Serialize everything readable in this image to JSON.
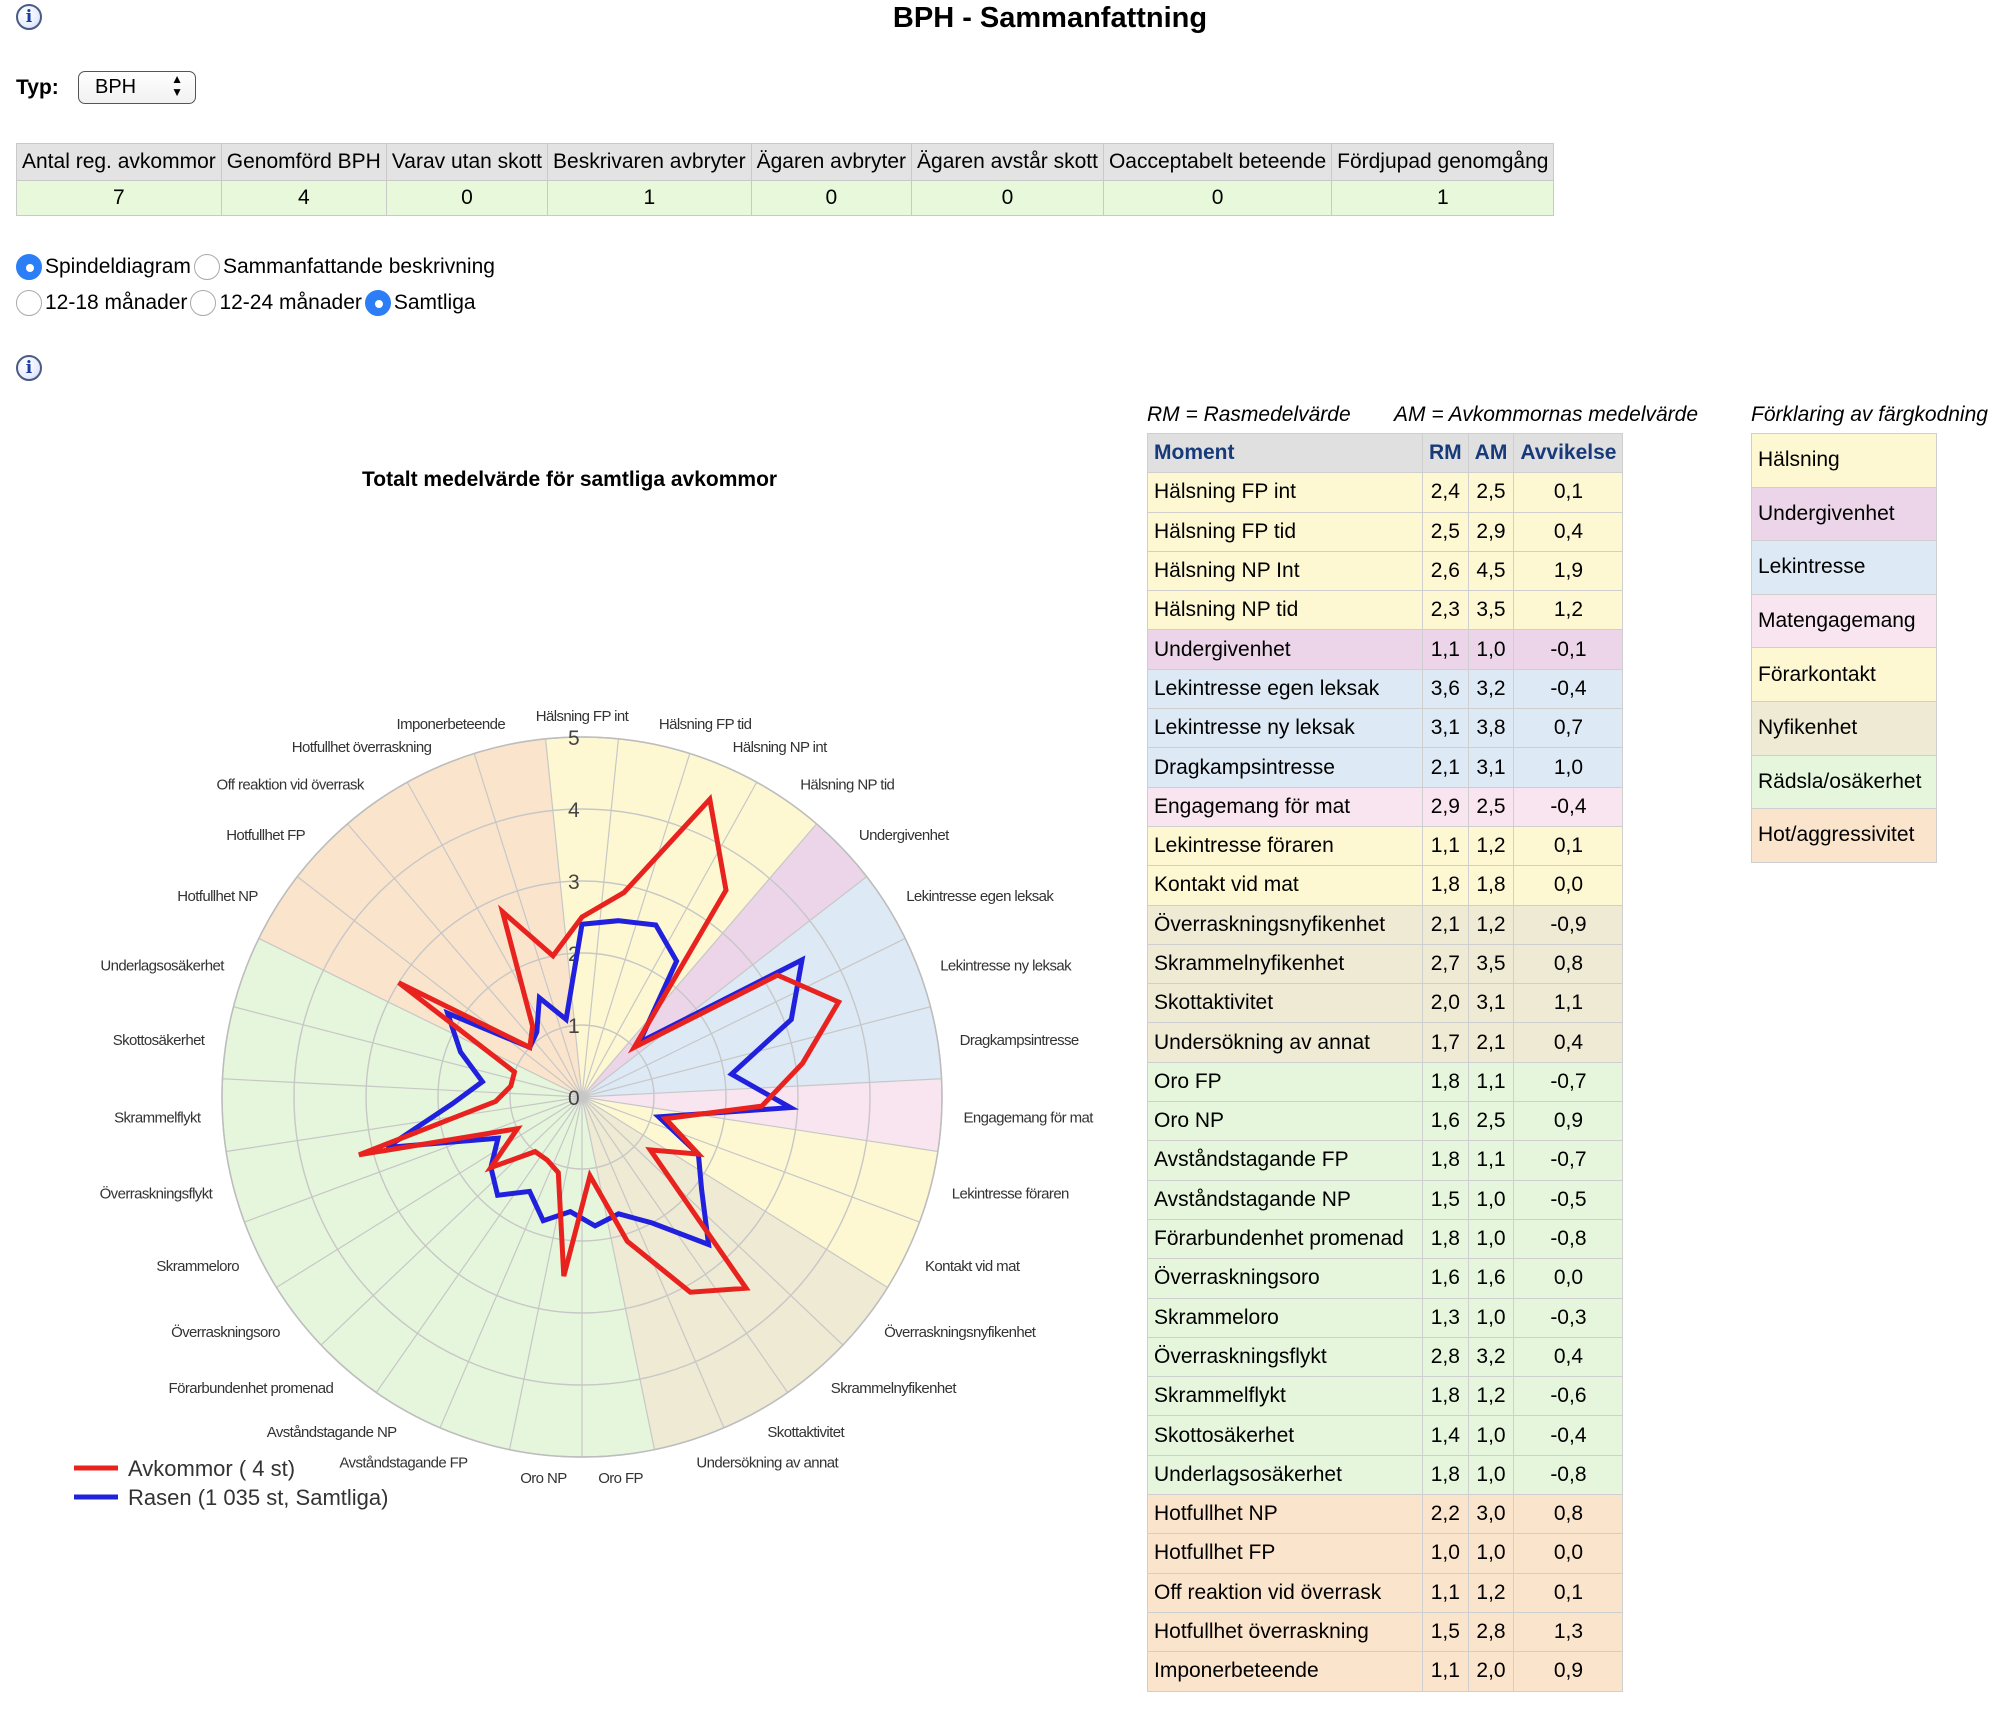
{
  "page": {
    "title": "BPH - Sammanfattning"
  },
  "info_icon_glyph": "i",
  "typ": {
    "label": "Typ:",
    "selected": "BPH"
  },
  "stats": {
    "headers": [
      "Antal reg. avkommor",
      "Genomförd BPH",
      "Varav utan skott",
      "Beskrivaren avbryter",
      "Ägaren avbryter",
      "Ägaren avstår skott",
      "Oacceptabelt beteende",
      "Fördjupad genomgång"
    ],
    "values": [
      "7",
      "4",
      "0",
      "1",
      "0",
      "0",
      "0",
      "1"
    ]
  },
  "view_options": [
    {
      "label": "Spindeldiagram",
      "checked": true
    },
    {
      "label": "Sammanfattande beskrivning",
      "checked": false
    }
  ],
  "age_options": [
    {
      "label": "12-18 månader",
      "checked": false
    },
    {
      "label": "12-24 månader",
      "checked": false
    },
    {
      "label": "Samtliga",
      "checked": true
    }
  ],
  "legend_notes": {
    "rm": "RM = Rasmedelvärde",
    "am": "AM = Avkommornas medelvärde",
    "colors": "Förklaring av färgkodning"
  },
  "table_headers": {
    "moment": "Moment",
    "rm": "RM",
    "am": "AM",
    "deviation": "Avvikelse"
  },
  "category_colors": {
    "halsning": "#fdf8d2",
    "undergivenhet": "#ecd5e8",
    "lekintresse": "#dde9f4",
    "matengagemang": "#f9e5ef",
    "forarkontakt": "#fdf8d2",
    "nyfikenhet": "#efead3",
    "radsla": "#e6f6dc",
    "hot": "#fbe4cc"
  },
  "moments": [
    {
      "name": "Hälsning FP int",
      "rm": "2,4",
      "am": "2,5",
      "dev": "0,1",
      "cat": "halsning"
    },
    {
      "name": "Hälsning FP tid",
      "rm": "2,5",
      "am": "2,9",
      "dev": "0,4",
      "cat": "halsning"
    },
    {
      "name": "Hälsning NP Int",
      "rm": "2,6",
      "am": "4,5",
      "dev": "1,9",
      "cat": "halsning"
    },
    {
      "name": "Hälsning NP tid",
      "rm": "2,3",
      "am": "3,5",
      "dev": "1,2",
      "cat": "halsning"
    },
    {
      "name": "Undergivenhet",
      "rm": "1,1",
      "am": "1,0",
      "dev": "-0,1",
      "cat": "undergivenhet"
    },
    {
      "name": "Lekintresse egen leksak",
      "rm": "3,6",
      "am": "3,2",
      "dev": "-0,4",
      "cat": "lekintresse"
    },
    {
      "name": "Lekintresse ny leksak",
      "rm": "3,1",
      "am": "3,8",
      "dev": "0,7",
      "cat": "lekintresse"
    },
    {
      "name": "Dragkampsintresse",
      "rm": "2,1",
      "am": "3,1",
      "dev": "1,0",
      "cat": "lekintresse"
    },
    {
      "name": "Engagemang för mat",
      "rm": "2,9",
      "am": "2,5",
      "dev": "-0,4",
      "cat": "matengagemang"
    },
    {
      "name": "Lekintresse föraren",
      "rm": "1,1",
      "am": "1,2",
      "dev": "0,1",
      "cat": "forarkontakt"
    },
    {
      "name": "Kontakt vid mat",
      "rm": "1,8",
      "am": "1,8",
      "dev": "0,0",
      "cat": "forarkontakt"
    },
    {
      "name": "Överraskningsnyfikenhet",
      "rm": "2,1",
      "am": "1,2",
      "dev": "-0,9",
      "cat": "nyfikenhet"
    },
    {
      "name": "Skrammelnyfikenhet",
      "rm": "2,7",
      "am": "3,5",
      "dev": "0,8",
      "cat": "nyfikenhet"
    },
    {
      "name": "Skottaktivitet",
      "rm": "2,0",
      "am": "3,1",
      "dev": "1,1",
      "cat": "nyfikenhet"
    },
    {
      "name": "Undersökning av annat",
      "rm": "1,7",
      "am": "2,1",
      "dev": "0,4",
      "cat": "nyfikenhet"
    },
    {
      "name": "Oro FP",
      "rm": "1,8",
      "am": "1,1",
      "dev": "-0,7",
      "cat": "radsla"
    },
    {
      "name": "Oro NP",
      "rm": "1,6",
      "am": "2,5",
      "dev": "0,9",
      "cat": "radsla"
    },
    {
      "name": "Avståndstagande FP",
      "rm": "1,8",
      "am": "1,1",
      "dev": "-0,7",
      "cat": "radsla"
    },
    {
      "name": "Avståndstagande NP",
      "rm": "1,5",
      "am": "1,0",
      "dev": "-0,5",
      "cat": "radsla"
    },
    {
      "name": "Förarbundenhet promenad",
      "rm": "1,8",
      "am": "1,0",
      "dev": "-0,8",
      "cat": "radsla"
    },
    {
      "name": "Överraskningsoro",
      "rm": "1,6",
      "am": "1,6",
      "dev": "0,0",
      "cat": "radsla"
    },
    {
      "name": "Skrammeloro",
      "rm": "1,3",
      "am": "1,0",
      "dev": "-0,3",
      "cat": "radsla"
    },
    {
      "name": "Överraskningsflykt",
      "rm": "2,8",
      "am": "3,2",
      "dev": "0,4",
      "cat": "radsla"
    },
    {
      "name": "Skrammelflykt",
      "rm": "1,8",
      "am": "1,2",
      "dev": "-0,6",
      "cat": "radsla"
    },
    {
      "name": "Skottosäkerhet",
      "rm": "1,4",
      "am": "1,0",
      "dev": "-0,4",
      "cat": "radsla"
    },
    {
      "name": "Underlagsosäkerhet",
      "rm": "1,8",
      "am": "1,0",
      "dev": "-0,8",
      "cat": "radsla"
    },
    {
      "name": "Hotfullhet NP",
      "rm": "2,2",
      "am": "3,0",
      "dev": "0,8",
      "cat": "hot"
    },
    {
      "name": "Hotfullhet FP",
      "rm": "1,0",
      "am": "1,0",
      "dev": "0,0",
      "cat": "hot"
    },
    {
      "name": "Off reaktion vid överrask",
      "rm": "1,1",
      "am": "1,2",
      "dev": "0,1",
      "cat": "hot"
    },
    {
      "name": "Hotfullhet överraskning",
      "rm": "1,5",
      "am": "2,8",
      "dev": "1,3",
      "cat": "hot"
    },
    {
      "name": "Imponerbeteende",
      "rm": "1,1",
      "am": "2,0",
      "dev": "0,9",
      "cat": "hot"
    }
  ],
  "color_legend": [
    {
      "label": "Hälsning",
      "cat": "halsning"
    },
    {
      "label": "Undergivenhet",
      "cat": "undergivenhet"
    },
    {
      "label": "Lekintresse",
      "cat": "lekintresse"
    },
    {
      "label": "Matengagemang",
      "cat": "matengagemang"
    },
    {
      "label": "Förarkontakt",
      "cat": "forarkontakt"
    },
    {
      "label": "Nyfikenhet",
      "cat": "nyfikenhet"
    },
    {
      "label": "Rädsla/osäkerhet",
      "cat": "radsla"
    },
    {
      "label": "Hot/aggressivitet",
      "cat": "hot"
    }
  ],
  "chart_data": {
    "type": "radar",
    "title": "Totalt medelvärde för samtliga avkommor",
    "rlim": [
      0,
      5
    ],
    "tick_labels": [
      "0",
      "1",
      "2",
      "3",
      "4",
      "5"
    ],
    "axes": [
      "Hälsning FP int",
      "Hälsning FP tid",
      "Hälsning NP Int",
      "Hälsning NP tid",
      "Undergivenhet",
      "Lekintresse egen leksak",
      "Lekintresse ny leksak",
      "Dragkampsintresse",
      "Engagemang för mat",
      "Lekintresse föraren",
      "Kontakt vid mat",
      "Överraskningsnyfikenhet",
      "Skrammelnyfikenhet",
      "Skottaktivitet",
      "Undersökning av annat",
      "Oro FP",
      "Oro NP",
      "Avståndstagande FP",
      "Avståndstagande NP",
      "Förarbundenhet promenad",
      "Överraskningsoro",
      "Skrammeloro",
      "Överraskningsflykt",
      "Skrammelflykt",
      "Skottosäkerhet",
      "Underlagsosäkerhet",
      "Hotfullhet NP",
      "Hotfullhet FP",
      "Off reaktion vid överrask",
      "Hotfullhet överraskning",
      "Imponerbeteende"
    ],
    "axis_labels": [
      "Hälsning FP int",
      "Hälsning FP tid",
      "Hälsning NP int",
      "Hälsning NP tid",
      "Undergivenhet",
      "Lekintresse egen leksak",
      "Lekintresse ny leksak",
      "Dragkampsintresse",
      "Engagemang för mat",
      "Lekintresse föraren",
      "Kontakt vid mat",
      "Överraskningsnyfikenhet",
      "Skrammelnyfikenhet",
      "Skottaktivitet",
      "Undersökning av annat",
      "Oro FP",
      "Oro NP",
      "Avståndstagande FP",
      "Avståndstagande NP",
      "Förarbundenhet promenad",
      "Överraskningsoro",
      "Skrammeloro",
      "Överraskningsflykt",
      "Skrammelflykt",
      "Skottosäkerhet",
      "Underlagsosäkerhet",
      "Hotfullhet NP",
      "Hotfullhet FP",
      "Off reaktion vid överrask",
      "Hotfullhet överraskning",
      "Imponerbeteende"
    ],
    "series": [
      {
        "name": "Avkommor ( 4 st)",
        "color": "#e8231f",
        "values": [
          2.5,
          2.9,
          4.5,
          3.5,
          1.0,
          3.2,
          3.8,
          3.1,
          2.5,
          1.2,
          1.8,
          1.2,
          3.5,
          3.1,
          2.1,
          1.1,
          2.5,
          1.1,
          1.0,
          1.0,
          1.6,
          1.0,
          3.2,
          1.2,
          1.0,
          1.0,
          3.0,
          1.0,
          1.2,
          2.8,
          2.0
        ]
      },
      {
        "name": "Rasen (1 035 st, Samtliga)",
        "color": "#2020dd",
        "values": [
          2.4,
          2.5,
          2.6,
          2.3,
          1.1,
          3.6,
          3.1,
          2.1,
          2.9,
          1.1,
          1.8,
          2.1,
          2.7,
          2.0,
          1.7,
          1.8,
          1.6,
          1.8,
          1.5,
          1.8,
          1.6,
          1.3,
          2.8,
          1.8,
          1.4,
          1.8,
          2.2,
          1.0,
          1.1,
          1.5,
          1.1
        ]
      }
    ],
    "sector_categories": [
      "halsning",
      "halsning",
      "halsning",
      "halsning",
      "undergivenhet",
      "lekintresse",
      "lekintresse",
      "lekintresse",
      "matengagemang",
      "forarkontakt",
      "forarkontakt",
      "nyfikenhet",
      "nyfikenhet",
      "nyfikenhet",
      "nyfikenhet",
      "radsla",
      "radsla",
      "radsla",
      "radsla",
      "radsla",
      "radsla",
      "radsla",
      "radsla",
      "radsla",
      "radsla",
      "radsla",
      "hot",
      "hot",
      "hot",
      "hot",
      "hot"
    ],
    "grid": true,
    "legend_position": "bottom-left"
  }
}
